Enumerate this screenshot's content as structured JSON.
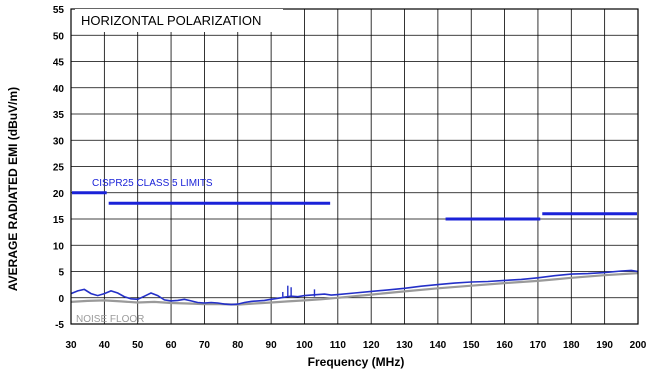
{
  "chart_data": {
    "type": "line",
    "title": "HORIZONTAL POLARIZATION",
    "xlabel": "Frequency (MHz)",
    "ylabel": "AVERAGE RADIATED EMI (dBuV/m)",
    "xlim": [
      30,
      200
    ],
    "ylim": [
      -5,
      55
    ],
    "xticks": [
      30,
      40,
      50,
      60,
      70,
      80,
      90,
      100,
      110,
      120,
      130,
      140,
      150,
      160,
      170,
      180,
      190,
      200
    ],
    "yticks": [
      -5,
      0,
      5,
      10,
      15,
      20,
      25,
      30,
      35,
      40,
      45,
      50,
      55
    ],
    "grid": true,
    "limit_label": "CISPR25 CLASS 5 LIMITS",
    "noise_label": "NOISE FLOOR",
    "limit_color": "#1a22d8",
    "measurement_color": "#2430c8",
    "noise_color": "#9a9a9a",
    "limits": [
      {
        "x": [
          30,
          41
        ],
        "y": 20
      },
      {
        "x": [
          41,
          108
        ],
        "y": 18
      },
      {
        "x": [
          142,
          171
        ],
        "y": 15
      },
      {
        "x": [
          171,
          200
        ],
        "y": 16
      }
    ],
    "series": [
      {
        "role": "measurement",
        "x": [
          30,
          32,
          34,
          36,
          38,
          40,
          42,
          44,
          46,
          48,
          50,
          52,
          54,
          56,
          58,
          60,
          62,
          64,
          66,
          68,
          70,
          72,
          74,
          76,
          78,
          80,
          82,
          84,
          86,
          88,
          90,
          92,
          94,
          96,
          98,
          100,
          102,
          104,
          106,
          108,
          110,
          115,
          120,
          125,
          130,
          135,
          140,
          145,
          150,
          155,
          160,
          165,
          170,
          175,
          180,
          185,
          190,
          195,
          198,
          200
        ],
        "y": [
          0.8,
          1.3,
          1.6,
          0.8,
          0.4,
          0.8,
          1.3,
          0.9,
          0.2,
          -0.2,
          -0.3,
          0.3,
          0.9,
          0.4,
          -0.4,
          -0.6,
          -0.5,
          -0.3,
          -0.6,
          -0.9,
          -1.0,
          -0.9,
          -1.0,
          -1.2,
          -1.3,
          -1.2,
          -0.9,
          -0.7,
          -0.6,
          -0.5,
          -0.3,
          -0.1,
          0.1,
          0.3,
          0.2,
          0.4,
          0.5,
          0.6,
          0.7,
          0.5,
          0.6,
          0.9,
          1.2,
          1.5,
          1.8,
          2.2,
          2.5,
          2.8,
          3.0,
          3.1,
          3.3,
          3.5,
          3.8,
          4.2,
          4.5,
          4.6,
          4.8,
          5.1,
          5.2,
          5.0
        ]
      },
      {
        "role": "noise floor",
        "x": [
          30,
          35,
          40,
          45,
          50,
          55,
          60,
          65,
          70,
          75,
          80,
          85,
          90,
          95,
          100,
          105,
          110,
          120,
          130,
          140,
          150,
          160,
          170,
          175,
          180,
          190,
          200
        ],
        "y": [
          -0.8,
          -0.6,
          -0.5,
          -0.7,
          -0.9,
          -0.8,
          -1.0,
          -1.1,
          -1.2,
          -1.2,
          -1.3,
          -1.1,
          -0.9,
          -0.7,
          -0.5,
          -0.3,
          0.0,
          0.6,
          1.2,
          1.8,
          2.3,
          2.8,
          3.2,
          3.5,
          3.8,
          4.3,
          4.7
        ]
      }
    ],
    "spikes": [
      {
        "x": 95,
        "y": 2.3
      },
      {
        "x": 96,
        "y": 2.0
      },
      {
        "x": 93.5,
        "y": 1.1
      },
      {
        "x": 103,
        "y": 1.6
      }
    ]
  }
}
